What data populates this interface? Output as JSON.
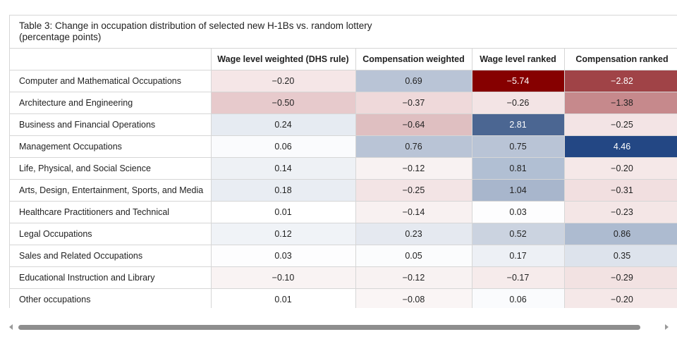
{
  "table": {
    "caption_line1": "Table 3: Change in occupation distribution of selected new H-1Bs vs. random lottery",
    "caption_line2": "(percentage points)",
    "columns": [
      "",
      "Wage level weighted (DHS rule)",
      "Compensation weighted",
      "Wage level ranked",
      "Compensation ranked"
    ],
    "rows": [
      {
        "label": "Computer and Mathematical Occupations",
        "values": [
          "−0.20",
          "0.69",
          "−5.74",
          "−2.82"
        ],
        "colors": [
          "#f5e6e7",
          "#b9c4d6",
          "#860000",
          "#a04347"
        ]
      },
      {
        "label": "Architecture and Engineering",
        "values": [
          "−0.50",
          "−0.37",
          "−0.26",
          "−1.38"
        ],
        "colors": [
          "#e7cacc",
          "#efd9da",
          "#f3e4e5",
          "#c6898c"
        ]
      },
      {
        "label": "Business and Financial Operations",
        "values": [
          "0.24",
          "−0.64",
          "2.81",
          "−0.25"
        ],
        "colors": [
          "#e6ebf2",
          "#dfbfc1",
          "#4b6692",
          "#f3e4e5"
        ]
      },
      {
        "label": "Management Occupations",
        "values": [
          "0.06",
          "0.76",
          "0.75",
          "4.46"
        ],
        "colors": [
          "#fafbfd",
          "#b9c4d6",
          "#b9c4d6",
          "#234784"
        ]
      },
      {
        "label": "Life, Physical, and Social Science",
        "values": [
          "0.14",
          "−0.12",
          "0.81",
          "−0.20"
        ],
        "colors": [
          "#eef1f5",
          "#f8f2f2",
          "#b1bfd3",
          "#f5e8e8"
        ]
      },
      {
        "label": "Arts, Design, Entertainment, Sports, and Media",
        "values": [
          "0.18",
          "−0.25",
          "1.04",
          "−0.31"
        ],
        "colors": [
          "#e9edf3",
          "#f3e4e5",
          "#a8b6cc",
          "#f1dfe0"
        ]
      },
      {
        "label": "Healthcare Practitioners and Technical",
        "values": [
          "0.01",
          "−0.14",
          "0.03",
          "−0.23"
        ],
        "colors": [
          "#ffffff",
          "#f8f1f1",
          "#fdfdfe",
          "#f4e6e6"
        ]
      },
      {
        "label": "Legal Occupations",
        "values": [
          "0.12",
          "0.23",
          "0.52",
          "0.86"
        ],
        "colors": [
          "#f0f3f7",
          "#e5e9f0",
          "#cbd3e0",
          "#adbbd0"
        ]
      },
      {
        "label": "Sales and Related Occupations",
        "values": [
          "0.03",
          "0.05",
          "0.17",
          "0.35"
        ],
        "colors": [
          "#fdfdfe",
          "#fbfcfd",
          "#edf0f5",
          "#dde3ec"
        ]
      },
      {
        "label": "Educational Instruction and Library",
        "values": [
          "−0.10",
          "−0.12",
          "−0.17",
          "−0.29"
        ],
        "colors": [
          "#f9f3f3",
          "#f8f2f2",
          "#f6ebeb",
          "#f2e2e2"
        ]
      },
      {
        "label": "Other occupations",
        "values": [
          "0.01",
          "−0.08",
          "0.06",
          "−0.20"
        ],
        "colors": [
          "#ffffff",
          "#faf5f5",
          "#fafbfd",
          "#f5e8e8"
        ]
      }
    ]
  },
  "dark_text_color": "#222222",
  "light_text_color": "#ffffff"
}
